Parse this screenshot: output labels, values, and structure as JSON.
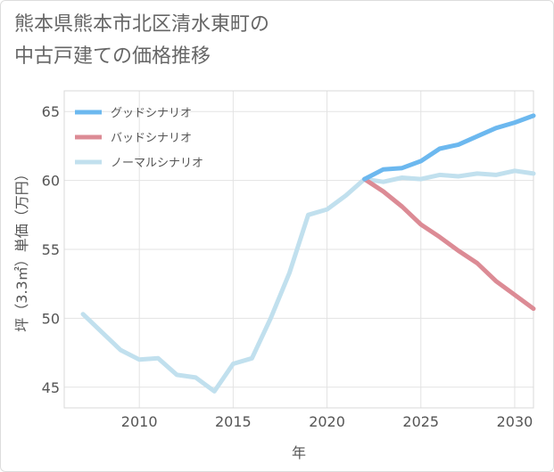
{
  "title_lines": [
    "熊本県熊本市北区清水東町の",
    "中古戸建ての価格推移"
  ],
  "chart_data": {
    "type": "line",
    "title": "熊本県熊本市北区清水東町の中古戸建ての価格推移",
    "xlabel": "年",
    "ylabel": "坪（3.3㎡）単価（万円）",
    "xlim": [
      2006,
      2031
    ],
    "ylim": [
      43.5,
      66.5
    ],
    "xticks": [
      2010,
      2015,
      2020,
      2025,
      2030
    ],
    "yticks": [
      45,
      50,
      55,
      60,
      65
    ],
    "grid": true,
    "legend_position": "top-left",
    "series": [
      {
        "name": "グッドシナリオ",
        "color": "#6cb8ef",
        "x": [
          2022,
          2023,
          2024,
          2025,
          2026,
          2027,
          2028,
          2029,
          2030,
          2031
        ],
        "values": [
          60.1,
          60.8,
          60.9,
          61.4,
          62.3,
          62.6,
          63.2,
          63.8,
          64.2,
          64.7
        ]
      },
      {
        "name": "バッドシナリオ",
        "color": "#dc8b95",
        "x": [
          2022,
          2023,
          2024,
          2025,
          2026,
          2027,
          2028,
          2029,
          2030,
          2031
        ],
        "values": [
          60.1,
          59.2,
          58.1,
          56.8,
          55.9,
          54.9,
          54.0,
          52.7,
          51.7,
          50.7
        ]
      },
      {
        "name": "ノーマルシナリオ",
        "color": "#c1e0ee",
        "x": [
          2007,
          2008,
          2009,
          2010,
          2011,
          2012,
          2013,
          2014,
          2015,
          2016,
          2017,
          2018,
          2019,
          2020,
          2021,
          2022,
          2023,
          2024,
          2025,
          2026,
          2027,
          2028,
          2029,
          2030,
          2031
        ],
        "values": [
          50.3,
          49.0,
          47.7,
          47.0,
          47.1,
          45.9,
          45.7,
          44.7,
          46.7,
          47.1,
          50.0,
          53.3,
          57.5,
          57.9,
          58.9,
          60.1,
          59.9,
          60.2,
          60.1,
          60.4,
          60.3,
          60.5,
          60.4,
          60.7,
          60.5
        ]
      }
    ]
  }
}
